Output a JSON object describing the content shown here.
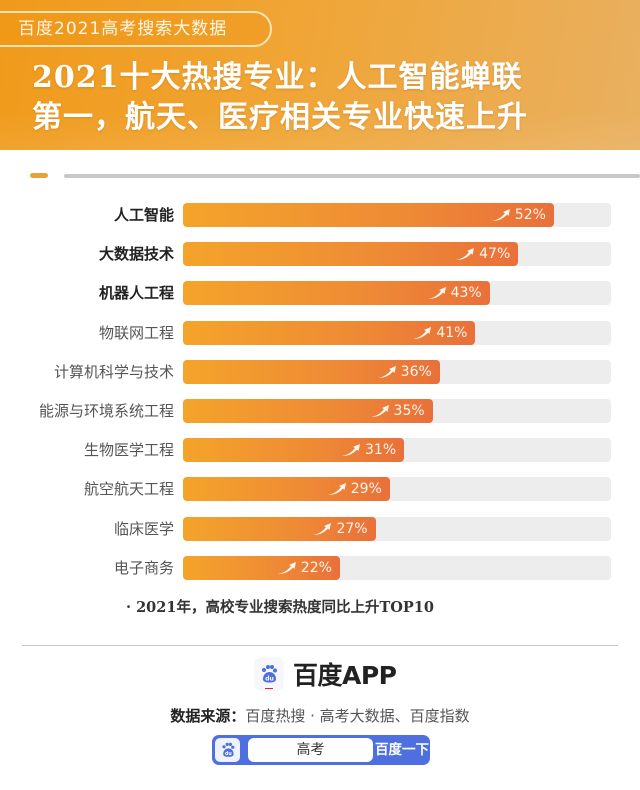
{
  "header": {
    "pill_label": "百度2021高考搜索大数据",
    "title_line1": "2021十大热搜专业：人工智能蝉联",
    "title_line2": "第一，航天、医疗相关专业快速上升"
  },
  "colors": {
    "header_orange": "#f09a1a",
    "bar_start": "#f4a42a",
    "bar_end": "#e9703a",
    "track": "#ededed",
    "search_blue": "#4e6fe0"
  },
  "chart_data": {
    "type": "bar",
    "orientation": "horizontal",
    "title": "2021十大热搜专业：人工智能蝉联第一，航天、医疗相关专业快速上升",
    "subtitle": "2021年，高校专业搜索热度同比上升TOP10",
    "categories": [
      "人工智能",
      "大数据技术",
      "机器人工程",
      "物联网工程",
      "计算机科学与技术",
      "能源与环境系统工程",
      "生物医学工程",
      "航空航天工程",
      "临床医学",
      "电子商务"
    ],
    "values": [
      52,
      47,
      43,
      41,
      36,
      35,
      31,
      29,
      27,
      22
    ],
    "unit": "%",
    "xlabel": "",
    "ylabel": "",
    "xlim": [
      0,
      60
    ],
    "grid": false,
    "legend": null
  },
  "rows": [
    {
      "label": "人工智能",
      "value_text": "52%",
      "bold": true
    },
    {
      "label": "大数据技术",
      "value_text": "47%",
      "bold": true
    },
    {
      "label": "机器人工程",
      "value_text": "43%",
      "bold": true
    },
    {
      "label": "物联网工程",
      "value_text": "41%",
      "bold": false
    },
    {
      "label": "计算机科学与技术",
      "value_text": "36%",
      "bold": false
    },
    {
      "label": "能源与环境系统工程",
      "value_text": "35%",
      "bold": false
    },
    {
      "label": "生物医学工程",
      "value_text": "31%",
      "bold": false
    },
    {
      "label": "航空航天工程",
      "value_text": "29%",
      "bold": false
    },
    {
      "label": "临床医学",
      "value_text": "27%",
      "bold": false
    },
    {
      "label": "电子商务",
      "value_text": "22%",
      "bold": false
    }
  ],
  "footnote": "· 2021年，高校专业搜索热度同比上升TOP10",
  "footer": {
    "brand": "百度APP",
    "brand_icon": "baidu-paw-icon",
    "source_label": "数据来源：",
    "source_text": "百度热搜 · 高考大数据、百度指数",
    "search_value": "高考",
    "search_button": "百度一下"
  }
}
